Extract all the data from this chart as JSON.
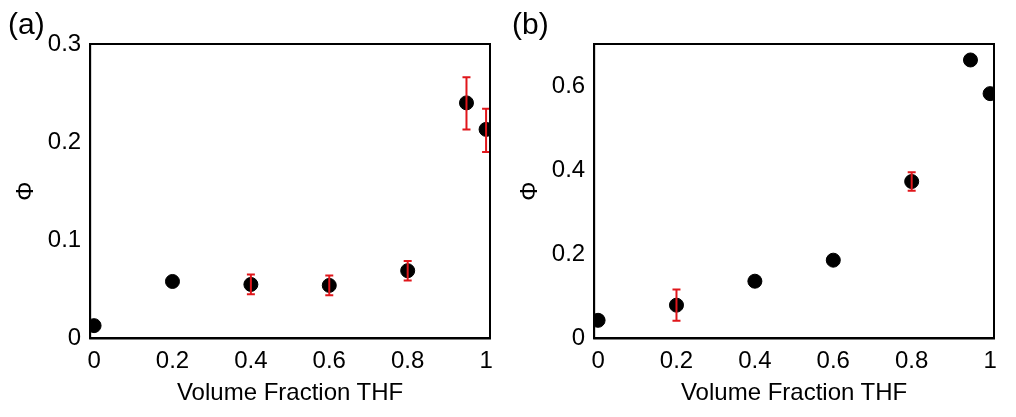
{
  "chart_data": [
    {
      "type": "scatter",
      "title": "(a)",
      "xlabel": "Volume Fraction THF",
      "ylabel": "Φ",
      "marker": "circle",
      "grid": false,
      "legend": false,
      "xlim": [
        -0.01,
        1.01
      ],
      "xticks": [
        0,
        0.2,
        0.4,
        0.6,
        0.8,
        1
      ],
      "ylim": [
        0,
        0.3
      ],
      "yticks": [
        0,
        0.1,
        0.2,
        0.3
      ],
      "series": [
        {
          "color": "#000000",
          "x": [
            0,
            0.2,
            0.4,
            0.6,
            0.8,
            0.95,
            1
          ],
          "values": [
            0.013,
            0.058,
            0.055,
            0.054,
            0.069,
            0.24,
            0.213
          ],
          "errors": [
            null,
            null,
            0.01,
            0.01,
            0.01,
            [
              0.213,
              0.266
            ],
            [
              0.19,
              0.234
            ]
          ]
        }
      ]
    },
    {
      "type": "scatter",
      "title": "(b)",
      "xlabel": "Volume Fraction THF",
      "ylabel": "Φ",
      "marker": "circle",
      "grid": false,
      "legend": false,
      "xlim": [
        -0.01,
        1.01
      ],
      "xticks": [
        0,
        0.2,
        0.4,
        0.6,
        0.8,
        1
      ],
      "ylim": [
        0,
        0.7
      ],
      "yticks": [
        0,
        0.2,
        0.4,
        0.6
      ],
      "series": [
        {
          "color": "#000000",
          "x": [
            0,
            0.2,
            0.4,
            0.6,
            0.8,
            0.95,
            1
          ],
          "values": [
            0.043,
            0.079,
            0.136,
            0.186,
            0.373,
            0.662,
            0.582
          ],
          "errors": [
            null,
            0.037,
            null,
            null,
            0.022,
            null,
            null
          ]
        }
      ]
    }
  ]
}
